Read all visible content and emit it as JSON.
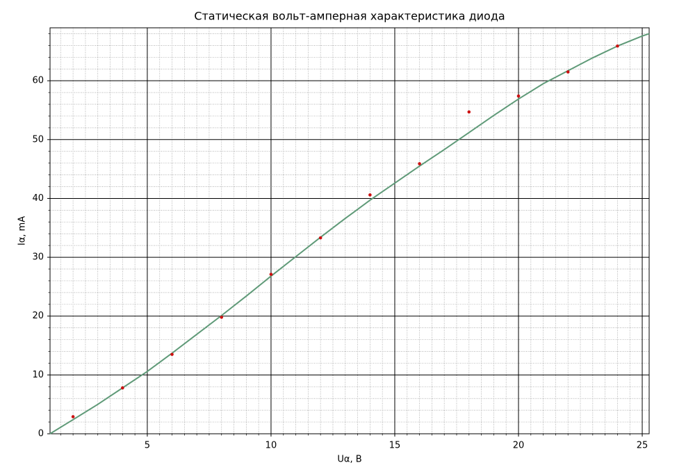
{
  "chart_data": {
    "type": "line",
    "title": "Статическая вольт-амперная характеристика диода",
    "xlabel": "Uα, B",
    "ylabel": "Iα, mA",
    "xlabel_color": "#1a1acc",
    "ylabel_color": "#e00000",
    "xlim": [
      1.07,
      25.28
    ],
    "ylim": [
      0,
      69
    ],
    "xticks": [
      5,
      10,
      15,
      20,
      25
    ],
    "yticks": [
      0,
      10,
      20,
      30,
      40,
      50,
      60
    ],
    "xminorticks": [
      1.5,
      2,
      2.5,
      3,
      3.5,
      4,
      4.5,
      5.5,
      6,
      6.5,
      7,
      7.5,
      8,
      8.5,
      9,
      9.5,
      10.5,
      11,
      11.5,
      12,
      12.5,
      13,
      13.5,
      14,
      14.5,
      15.5,
      16,
      16.5,
      17,
      17.5,
      18,
      18.5,
      19,
      19.5,
      20.5,
      21,
      21.5,
      22,
      22.5,
      23,
      23.5,
      24,
      24.5,
      25
    ],
    "yminorticks": [
      2,
      4,
      6,
      8,
      12,
      14,
      16,
      18,
      22,
      24,
      26,
      28,
      32,
      34,
      36,
      38,
      42,
      44,
      46,
      48,
      52,
      54,
      56,
      58,
      62,
      64,
      66,
      68
    ],
    "grid": true,
    "series": [
      {
        "type": "line",
        "color": "#5f9a78",
        "x": [
          1.07,
          2,
          3,
          4,
          5,
          6,
          7,
          8,
          9,
          10,
          11,
          12,
          13,
          14,
          15,
          16,
          17,
          18,
          19,
          20,
          21,
          22,
          23,
          24,
          25,
          25.28
        ],
        "values": [
          0,
          2.4,
          5.0,
          7.8,
          10.6,
          13.7,
          16.9,
          20.1,
          23.4,
          26.8,
          30.1,
          33.4,
          36.6,
          39.7,
          42.6,
          45.5,
          48.3,
          51.2,
          54.1,
          56.9,
          59.5,
          61.7,
          63.9,
          65.9,
          67.6,
          68.0
        ]
      },
      {
        "type": "scatter",
        "color": "#cc1111",
        "x": [
          2,
          4,
          6,
          8,
          10,
          12,
          14,
          16,
          18,
          20,
          22,
          24
        ],
        "values": [
          2.9,
          7.8,
          13.5,
          19.8,
          27.1,
          33.3,
          40.6,
          45.9,
          54.7,
          57.4,
          61.5,
          65.9
        ]
      }
    ]
  }
}
